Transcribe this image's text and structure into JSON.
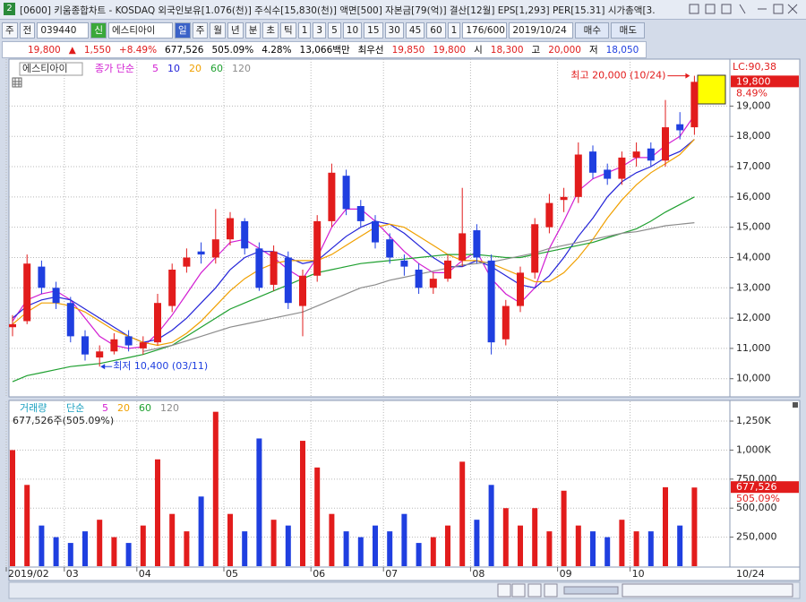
{
  "window": {
    "number": "2",
    "title": "[0600] 키움종합차트 - KOSDAQ 외국인보유[1.076(천)] 주식수[15,830(천)] 액면[500] 자본금[79(억)] 결산[12월] EPS[1,293] PER[15.31] 시가총액[3."
  },
  "toolbar": {
    "items": [
      "주",
      "전",
      "039440",
      "신",
      "에스티아이",
      "일",
      "주",
      "월",
      "년",
      "분",
      "초",
      "틱",
      "1",
      "3",
      "5",
      "10",
      "15",
      "30",
      "45",
      "60",
      "1",
      "176/600",
      "2019/10/24",
      "매수",
      "매도"
    ]
  },
  "quote": {
    "items": [
      "19,800",
      "▲",
      "1,550",
      "+8.49%",
      "677,526",
      "505.09%",
      "4.28%",
      "13,066백만",
      "최우선",
      "19,850",
      "19,800",
      "시",
      "18,300",
      "고",
      "20,000",
      "저",
      "18,050"
    ]
  },
  "chart_data": [
    {
      "type": "candlestick",
      "title": "에스티아이",
      "indicator_label": "종가 단순",
      "open": [
        11700,
        11900,
        13700,
        13000,
        12500,
        11400,
        10700,
        10900,
        11400,
        11000,
        11200,
        12400,
        13700,
        14200,
        14000,
        14600,
        15200,
        14300,
        13100,
        14000,
        12400,
        13400,
        15200,
        16700,
        15700,
        15200,
        14600,
        13900,
        13600,
        13000,
        13300,
        13900,
        14900,
        13900,
        11300,
        12400,
        13500,
        15000,
        15900,
        16000,
        17500,
        16900,
        16600,
        17300,
        17600,
        17200,
        18400,
        18300
      ],
      "high": [
        12100,
        14100,
        13900,
        13200,
        12700,
        11600,
        11100,
        11500,
        11600,
        11400,
        12800,
        13800,
        14300,
        14500,
        15600,
        15500,
        15300,
        14500,
        14400,
        14200,
        13600,
        15400,
        17100,
        16900,
        15900,
        15400,
        14800,
        14100,
        13800,
        13500,
        14100,
        16300,
        15100,
        14100,
        12600,
        13700,
        15300,
        16100,
        16300,
        17800,
        17700,
        17100,
        17500,
        17800,
        17800,
        19200,
        18800,
        20000
      ],
      "low": [
        11400,
        11800,
        12800,
        12300,
        11200,
        10600,
        10400,
        10800,
        10900,
        10800,
        11100,
        12200,
        13500,
        13800,
        13800,
        14400,
        14100,
        12900,
        12900,
        12300,
        11400,
        13200,
        15000,
        15400,
        15000,
        14300,
        13800,
        13400,
        12800,
        12800,
        13200,
        13700,
        13800,
        10800,
        11100,
        12200,
        13300,
        14800,
        15500,
        15800,
        16600,
        16400,
        16400,
        17000,
        17000,
        17000,
        17900,
        18050
      ],
      "close": [
        11800,
        13800,
        13000,
        12500,
        11400,
        10800,
        10900,
        11300,
        11100,
        11200,
        12500,
        13600,
        14000,
        14100,
        14600,
        15300,
        14300,
        13000,
        14200,
        12500,
        13400,
        15200,
        16800,
        15600,
        15200,
        14500,
        14000,
        13700,
        13000,
        13300,
        13900,
        14800,
        14000,
        11200,
        12400,
        13500,
        15100,
        15800,
        16000,
        17400,
        16800,
        16600,
        17300,
        17500,
        17200,
        18300,
        18200,
        19800
      ],
      "up_color": "#e21c1c",
      "down_color": "#1f3fe0",
      "series": [
        {
          "name": "5",
          "color": "#d21ed2",
          "values": [
            11900,
            12600,
            12800,
            12900,
            12600,
            12000,
            11400,
            11100,
            11000,
            11050,
            11500,
            12100,
            12800,
            13500,
            14000,
            14500,
            14600,
            14300,
            14000,
            13600,
            13300,
            14000,
            15000,
            15600,
            15600,
            15200,
            14700,
            14200,
            13800,
            13500,
            13500,
            13900,
            14200,
            13300,
            12800,
            12500,
            13000,
            14300,
            15200,
            16200,
            16600,
            16800,
            17000,
            17300,
            17300,
            17700,
            18000,
            18700
          ]
        },
        {
          "name": "10",
          "color": "#2424d8",
          "values": [
            12000,
            12400,
            12600,
            12700,
            12600,
            12300,
            12000,
            11700,
            11400,
            11200,
            11300,
            11600,
            12000,
            12500,
            13000,
            13600,
            14000,
            14200,
            14200,
            14000,
            13800,
            13900,
            14300,
            14700,
            15000,
            15200,
            15100,
            14800,
            14400,
            14000,
            13700,
            13700,
            13900,
            13700,
            13400,
            13100,
            13000,
            13400,
            14000,
            14700,
            15300,
            16000,
            16500,
            16800,
            17000,
            17300,
            17500,
            17900
          ]
        },
        {
          "name": "20",
          "color": "#f0a000",
          "values": [
            11800,
            12200,
            12500,
            12500,
            12400,
            12200,
            11900,
            11600,
            11400,
            11200,
            11100,
            11200,
            11500,
            11900,
            12400,
            12900,
            13300,
            13600,
            13800,
            13900,
            13900,
            13900,
            14100,
            14400,
            14700,
            15000,
            15100,
            15000,
            14700,
            14400,
            14100,
            13900,
            13900,
            13800,
            13600,
            13400,
            13200,
            13200,
            13500,
            14000,
            14600,
            15300,
            15900,
            16400,
            16800,
            17100,
            17400,
            17900
          ]
        },
        {
          "name": "60",
          "color": "#1fa030",
          "values": [
            9900,
            10100,
            10200,
            10300,
            10400,
            10450,
            10500,
            10600,
            10700,
            10800,
            10950,
            11100,
            11400,
            11700,
            12000,
            12300,
            12500,
            12700,
            12900,
            13100,
            13300,
            13500,
            13600,
            13700,
            13800,
            13850,
            13900,
            13950,
            14000,
            14050,
            14100,
            14100,
            14100,
            14050,
            14000,
            14000,
            14100,
            14200,
            14300,
            14400,
            14500,
            14650,
            14800,
            14950,
            15200,
            15500,
            15750,
            16000
          ]
        },
        {
          "name": "120",
          "color": "#8c8c8c",
          "values": [
            null,
            null,
            null,
            null,
            null,
            null,
            null,
            null,
            null,
            10900,
            11000,
            11100,
            11250,
            11400,
            11550,
            11700,
            11800,
            11900,
            12000,
            12100,
            12200,
            12400,
            12600,
            12800,
            13000,
            13100,
            13250,
            13350,
            13450,
            13550,
            13650,
            13750,
            13800,
            13850,
            13950,
            14050,
            14150,
            14300,
            14400,
            14500,
            14600,
            14700,
            14800,
            14850,
            14950,
            15050,
            15100,
            15150
          ]
        }
      ],
      "ylim": [
        9430,
        20550
      ],
      "yticks": [
        {
          "value": 10000,
          "label": "10,000"
        },
        {
          "value": 11000,
          "label": "11,000"
        },
        {
          "value": 12000,
          "label": "12,000"
        },
        {
          "value": 13000,
          "label": "13,000"
        },
        {
          "value": 14000,
          "label": "14,000"
        },
        {
          "value": 15000,
          "label": "15,000"
        },
        {
          "value": 16000,
          "label": "16,000"
        },
        {
          "value": 17000,
          "label": "17,000"
        },
        {
          "value": 18000,
          "label": "18,000"
        },
        {
          "value": 19000,
          "label": "19,000"
        }
      ],
      "high_annotation": "최고 20,000 (10/24)",
      "low_annotation": "최저 10,400 (03/11)",
      "lc_label": "LC:90,38",
      "last_price_label": "19,800",
      "change_label": "8.49%",
      "grid": true
    },
    {
      "type": "bar",
      "title": "거래량",
      "indicator_label": "단순",
      "legend": [
        {
          "name": "5",
          "color": "#d21ed2"
        },
        {
          "name": "20",
          "color": "#f0a000"
        },
        {
          "name": "60",
          "color": "#1fa030"
        },
        {
          "name": "120",
          "color": "#8c8c8c"
        }
      ],
      "summary": "677,526주(505.09%)",
      "categories": [
        "2019/02",
        null,
        null,
        null,
        "03",
        null,
        null,
        null,
        null,
        "04",
        null,
        null,
        null,
        null,
        null,
        "05",
        null,
        null,
        null,
        null,
        null,
        "06",
        null,
        null,
        null,
        null,
        "07",
        null,
        null,
        null,
        null,
        null,
        "08",
        null,
        null,
        null,
        null,
        null,
        "09",
        null,
        null,
        null,
        null,
        "10",
        null,
        null,
        null,
        null
      ],
      "values": [
        1000000,
        700000,
        350000,
        250000,
        200000,
        300000,
        400000,
        250000,
        200000,
        350000,
        920000,
        450000,
        300000,
        600000,
        1330000,
        450000,
        300000,
        1100000,
        400000,
        350000,
        1080000,
        850000,
        450000,
        300000,
        250000,
        350000,
        300000,
        450000,
        200000,
        250000,
        350000,
        900000,
        400000,
        700000,
        500000,
        350000,
        500000,
        300000,
        650000,
        350000,
        300000,
        250000,
        400000,
        300000,
        300000,
        680000,
        350000,
        677526
      ],
      "ylim": [
        0,
        1420000
      ],
      "yticks": [
        {
          "value": 250000,
          "label": "250,000"
        },
        {
          "value": 500000,
          "label": "500,000"
        },
        {
          "value": 750000,
          "label": "750,000"
        },
        {
          "value": 1000000,
          "label": "1,000K"
        },
        {
          "value": 1250000,
          "label": "1,250K"
        }
      ],
      "last_value_label": "677,526",
      "ratio_label": "505.09%",
      "x_end_label": "10/24",
      "grid": true
    }
  ]
}
